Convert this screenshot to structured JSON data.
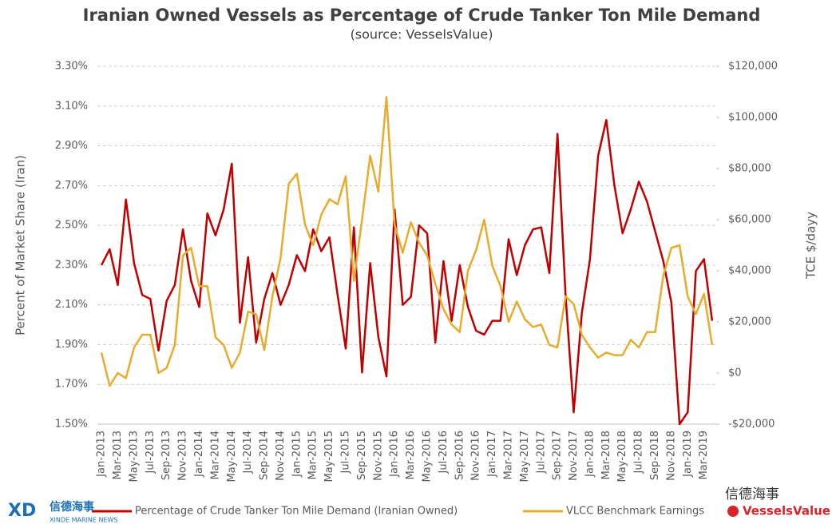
{
  "chart_data": {
    "type": "line",
    "title": "Iranian Owned Vessels as Percentage of Crude Tanker Ton Mile Demand",
    "subtitle": "(source: VesselsValue)",
    "y_label": "Percent of Market Share (Iran)",
    "y2_label": "TCE $/dayy",
    "categories": [
      "Jan-2013",
      null,
      "Mar-2013",
      null,
      "May-2013",
      null,
      "Jul-2013",
      null,
      "Sep-2013",
      null,
      "Nov-2013",
      null,
      "Jan-2014",
      null,
      "Mar-2014",
      null,
      "May-2014",
      null,
      "Jul-2014",
      null,
      "Sep-2014",
      null,
      "Nov-2014",
      null,
      "Jan-2015",
      null,
      "Mar-2015",
      null,
      "May-2015",
      null,
      "Jul-2015",
      null,
      "Sep-2015",
      null,
      "Nov-2015",
      null,
      "Jan-2016",
      null,
      "Mar-2016",
      null,
      "May-2016",
      null,
      "Jul-2016",
      null,
      "Sep-2016",
      null,
      "Nov-2016",
      null,
      "Jan-2017",
      null,
      "Mar-2017",
      null,
      "May-2017",
      null,
      "Jul-2017",
      null,
      "Sep-2017",
      null,
      "Nov-2017",
      null,
      "Jan-2018",
      null,
      "Mar-2018",
      null,
      "May-2018",
      null,
      "Jul-2018",
      null,
      "Sep-2018",
      null,
      "Nov-2018",
      null,
      "Jan-2019",
      null,
      "Mar-2019",
      null
    ],
    "series": [
      {
        "name": "Percentage of Crude Tanker Ton Mile Demand (Iranian Owned)",
        "color": "#c00000",
        "values": [
          2.3,
          2.38,
          2.2,
          2.63,
          2.31,
          2.15,
          2.13,
          1.87,
          2.12,
          2.2,
          2.48,
          2.22,
          2.09,
          2.56,
          2.45,
          2.58,
          2.81,
          2.01,
          2.34,
          1.91,
          2.13,
          2.26,
          2.1,
          2.2,
          2.35,
          2.27,
          2.48,
          2.37,
          2.44,
          2.15,
          1.88,
          2.49,
          1.76,
          2.31,
          1.94,
          1.74,
          2.58,
          2.1,
          2.14,
          2.5,
          2.46,
          1.91,
          2.32,
          2.02,
          2.3,
          2.09,
          1.97,
          1.95,
          2.02,
          2.02,
          2.43,
          2.25,
          2.4,
          2.48,
          2.49,
          2.26,
          2.96,
          2.15,
          1.56,
          2.06,
          2.33,
          2.85,
          3.03,
          2.7,
          2.46,
          2.58,
          2.72,
          2.62,
          2.47,
          2.32,
          2.11,
          1.5,
          1.56,
          2.27,
          2.33,
          2.02
        ]
      },
      {
        "name": "VLCC Benchmark Earnings",
        "color": "#e6ac2e",
        "axis": "y2",
        "values": [
          8000,
          -5000,
          0,
          -2000,
          10000,
          15000,
          15000,
          0,
          2000,
          11000,
          46000,
          49000,
          34000,
          34000,
          14000,
          11000,
          2000,
          8000,
          24000,
          23000,
          9000,
          30000,
          45000,
          74000,
          78000,
          58000,
          50000,
          62000,
          68000,
          66000,
          77000,
          36000,
          60000,
          85000,
          71000,
          108000,
          58000,
          47000,
          59000,
          51000,
          46000,
          35000,
          25000,
          19000,
          16000,
          40000,
          48000,
          60000,
          42000,
          34000,
          20000,
          28000,
          21000,
          18000,
          19000,
          11000,
          10000,
          30000,
          27000,
          15000,
          10000,
          6000,
          8000,
          7000,
          7000,
          13000,
          10000,
          16000,
          16000,
          38000,
          49000,
          50000,
          30000,
          23000,
          31000,
          11000
        ]
      }
    ],
    "ylim": [
      1.5,
      3.3
    ],
    "yticks": [
      {
        "value": 1.5,
        "label": "1.50%"
      },
      {
        "value": 1.7,
        "label": "1.70%"
      },
      {
        "value": 1.9,
        "label": "1.90%"
      },
      {
        "value": 2.1,
        "label": "2.10%"
      },
      {
        "value": 2.3,
        "label": "2.30%"
      },
      {
        "value": 2.5,
        "label": "2.50%"
      },
      {
        "value": 2.7,
        "label": "2.70%"
      },
      {
        "value": 2.9,
        "label": "2.90%"
      },
      {
        "value": 3.1,
        "label": "3.10%"
      },
      {
        "value": 3.3,
        "label": "3.30%"
      }
    ],
    "y2lim": [
      -20000,
      120000
    ],
    "y2ticks": [
      {
        "value": -20000,
        "label": "-$20,000"
      },
      {
        "value": 0,
        "label": "$0"
      },
      {
        "value": 20000,
        "label": "$20,000"
      },
      {
        "value": 40000,
        "label": "$40,000"
      },
      {
        "value": 60000,
        "label": "$60,000"
      },
      {
        "value": 80000,
        "label": "$80,000"
      },
      {
        "value": 100000,
        "label": "$100,000"
      },
      {
        "value": 120000,
        "label": "$120,000"
      }
    ],
    "grid": true,
    "legend": "bottom"
  },
  "branding": {
    "left_cn": "信德海事",
    "left_en": "XINDE MARINE NEWS",
    "right_cn": "信德海事",
    "right_en": "VesselsValue"
  }
}
